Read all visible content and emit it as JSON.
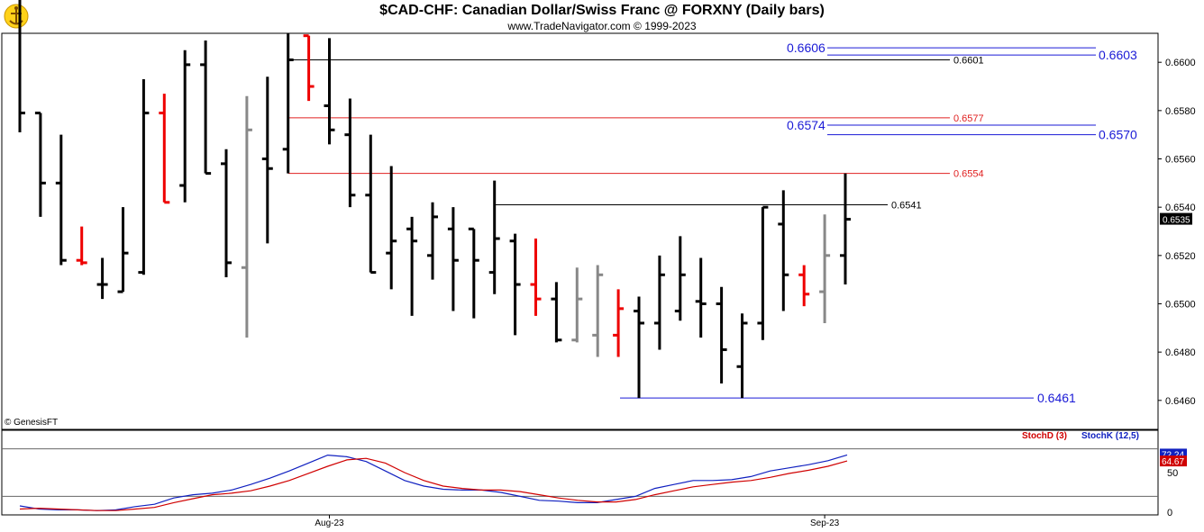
{
  "header": {
    "title": "$CAD-CHF:  Canadian Dollar/Swiss Franc @ FORXNY  (Daily bars)",
    "subtitle": "www.TradeNavigator.com © 1999-2023",
    "logo_icon": "trade-navigator-logo-icon",
    "watermark": "© GenesisFT"
  },
  "colors": {
    "up_bar": "#000000",
    "down_bar": "#ee0000",
    "neutral_bar": "#888888",
    "level_blue": "#1a1ad6",
    "level_red": "#e02020",
    "level_black": "#000000",
    "stoch_d": "#d00000",
    "stoch_k": "#1020c0"
  },
  "chart_data": [
    {
      "type": "ohlc",
      "title": "$CAD-CHF:  Canadian Dollar/Swiss Franc @ FORXNY  (Daily bars)",
      "ylim": [
        0.6448,
        0.6612
      ],
      "y_ticks": [
        "0.6600",
        "0.6580",
        "0.6560",
        "0.6540",
        "0.6520",
        "0.6500",
        "0.6480",
        "0.6460"
      ],
      "x_labels": [
        {
          "label": "Aug-23",
          "bar": 15
        },
        {
          "label": "Sep-23",
          "bar": 39
        }
      ],
      "last_price": "0.6535",
      "bars": [
        {
          "o": 0.664,
          "h": 0.665,
          "l": 0.6571,
          "c": 0.6579,
          "t": "u"
        },
        {
          "o": 0.6579,
          "h": 0.6579,
          "l": 0.6536,
          "c": 0.655,
          "t": "u"
        },
        {
          "o": 0.655,
          "h": 0.657,
          "l": 0.6516,
          "c": 0.6518,
          "t": "u"
        },
        {
          "o": 0.6518,
          "h": 0.6532,
          "l": 0.6516,
          "c": 0.6517,
          "t": "d"
        },
        {
          "o": 0.6508,
          "h": 0.6519,
          "l": 0.6502,
          "c": 0.6508,
          "t": "u"
        },
        {
          "o": 0.6505,
          "h": 0.654,
          "l": 0.6505,
          "c": 0.6521,
          "t": "u"
        },
        {
          "o": 0.6513,
          "h": 0.6593,
          "l": 0.6512,
          "c": 0.6579,
          "t": "u"
        },
        {
          "o": 0.6579,
          "h": 0.6587,
          "l": 0.6542,
          "c": 0.6542,
          "t": "d"
        },
        {
          "o": 0.6549,
          "h": 0.6605,
          "l": 0.6542,
          "c": 0.6599,
          "t": "u"
        },
        {
          "o": 0.6599,
          "h": 0.6609,
          "l": 0.6554,
          "c": 0.6554,
          "t": "u"
        },
        {
          "o": 0.6558,
          "h": 0.6564,
          "l": 0.6511,
          "c": 0.6517,
          "t": "u"
        },
        {
          "o": 0.6515,
          "h": 0.6586,
          "l": 0.6486,
          "c": 0.6572,
          "t": "n"
        },
        {
          "o": 0.656,
          "h": 0.6594,
          "l": 0.6525,
          "c": 0.6556,
          "t": "u"
        },
        {
          "o": 0.6564,
          "h": 0.6612,
          "l": 0.6554,
          "c": 0.6601,
          "t": "u"
        },
        {
          "o": 0.6611,
          "h": 0.6611,
          "l": 0.6584,
          "c": 0.659,
          "t": "d"
        },
        {
          "o": 0.6582,
          "h": 0.661,
          "l": 0.6566,
          "c": 0.6572,
          "t": "u"
        },
        {
          "o": 0.657,
          "h": 0.6585,
          "l": 0.654,
          "c": 0.6545,
          "t": "u"
        },
        {
          "o": 0.6545,
          "h": 0.657,
          "l": 0.6513,
          "c": 0.6513,
          "t": "u"
        },
        {
          "o": 0.6521,
          "h": 0.6557,
          "l": 0.6506,
          "c": 0.6526,
          "t": "u"
        },
        {
          "o": 0.6531,
          "h": 0.6536,
          "l": 0.6495,
          "c": 0.6526,
          "t": "u"
        },
        {
          "o": 0.652,
          "h": 0.6542,
          "l": 0.651,
          "c": 0.6536,
          "t": "u"
        },
        {
          "o": 0.6531,
          "h": 0.654,
          "l": 0.6497,
          "c": 0.6518,
          "t": "u"
        },
        {
          "o": 0.6531,
          "h": 0.6531,
          "l": 0.6494,
          "c": 0.6518,
          "t": "u"
        },
        {
          "o": 0.6513,
          "h": 0.6551,
          "l": 0.6504,
          "c": 0.6527,
          "t": "u"
        },
        {
          "o": 0.6526,
          "h": 0.6529,
          "l": 0.6487,
          "c": 0.6508,
          "t": "u"
        },
        {
          "o": 0.6508,
          "h": 0.6527,
          "l": 0.6495,
          "c": 0.6502,
          "t": "d"
        },
        {
          "o": 0.6502,
          "h": 0.6509,
          "l": 0.6484,
          "c": 0.6485,
          "t": "u"
        },
        {
          "o": 0.6485,
          "h": 0.6515,
          "l": 0.6484,
          "c": 0.6502,
          "t": "n"
        },
        {
          "o": 0.6487,
          "h": 0.6516,
          "l": 0.6478,
          "c": 0.6512,
          "t": "n"
        },
        {
          "o": 0.6487,
          "h": 0.6506,
          "l": 0.6478,
          "c": 0.6498,
          "t": "d"
        },
        {
          "o": 0.6497,
          "h": 0.6503,
          "l": 0.6461,
          "c": 0.6492,
          "t": "u"
        },
        {
          "o": 0.6492,
          "h": 0.652,
          "l": 0.6481,
          "c": 0.6512,
          "t": "u"
        },
        {
          "o": 0.6497,
          "h": 0.6528,
          "l": 0.6493,
          "c": 0.6512,
          "t": "u"
        },
        {
          "o": 0.6501,
          "h": 0.6519,
          "l": 0.6486,
          "c": 0.65,
          "t": "u"
        },
        {
          "o": 0.65,
          "h": 0.6507,
          "l": 0.6467,
          "c": 0.6481,
          "t": "u"
        },
        {
          "o": 0.6474,
          "h": 0.6496,
          "l": 0.6461,
          "c": 0.6492,
          "t": "u"
        },
        {
          "o": 0.6492,
          "h": 0.654,
          "l": 0.6485,
          "c": 0.654,
          "t": "u"
        },
        {
          "o": 0.6533,
          "h": 0.6547,
          "l": 0.6497,
          "c": 0.6512,
          "t": "u"
        },
        {
          "o": 0.6512,
          "h": 0.6516,
          "l": 0.6499,
          "c": 0.6504,
          "t": "d"
        },
        {
          "o": 0.6505,
          "h": 0.6537,
          "l": 0.6492,
          "c": 0.652,
          "t": "n"
        },
        {
          "o": 0.652,
          "h": 0.6554,
          "l": 0.6508,
          "c": 0.6535,
          "t": "u"
        }
      ],
      "levels": [
        {
          "label": "0.6606",
          "value": 0.6606,
          "color": "blue",
          "from_bar": 0,
          "to_bar": 50,
          "label_side": "left"
        },
        {
          "label": "0.6603",
          "value": 0.6603,
          "color": "blue",
          "from_bar": 0,
          "to_bar": 50,
          "label_side": "right"
        },
        {
          "label": "0.6601",
          "value": 0.6601,
          "color": "black",
          "from_bar": 13,
          "to_bar": 44,
          "label_side": "end"
        },
        {
          "label": "0.6577",
          "value": 0.6577,
          "color": "red",
          "from_bar": 13,
          "to_bar": 44,
          "label_side": "end"
        },
        {
          "label": "0.6574",
          "value": 0.6574,
          "color": "blue",
          "from_bar": 0,
          "to_bar": 50,
          "label_side": "left"
        },
        {
          "label": "0.6570",
          "value": 0.657,
          "color": "blue",
          "from_bar": 0,
          "to_bar": 50,
          "label_side": "right"
        },
        {
          "label": "0.6554",
          "value": 0.6554,
          "color": "red",
          "from_bar": 13,
          "to_bar": 44,
          "label_side": "end"
        },
        {
          "label": "0.6541",
          "value": 0.6541,
          "color": "black",
          "from_bar": 23,
          "to_bar": 40,
          "label_side": "end"
        },
        {
          "label": "0.6461",
          "value": 0.6461,
          "color": "blue",
          "from_bar": 29,
          "to_bar": 47,
          "label_side": "end"
        }
      ]
    },
    {
      "type": "line",
      "ylim": [
        0,
        100
      ],
      "y_ticks": [
        "50",
        "0"
      ],
      "reference_lines": [
        80,
        20
      ],
      "legend": [
        "StochD (3)",
        "StochK (12,5)"
      ],
      "series": [
        {
          "name": "StochK (12,5)",
          "values": [
            8,
            4,
            3,
            3,
            2,
            3,
            7,
            10,
            18,
            22,
            24,
            28,
            35,
            43,
            52,
            62,
            72,
            70,
            64,
            52,
            40,
            33,
            29,
            28,
            28,
            25,
            20,
            15,
            14,
            12,
            12,
            16,
            20,
            30,
            35,
            40,
            40,
            41,
            45,
            52,
            56,
            60,
            65,
            72.24
          ]
        },
        {
          "name": "StochD (3)",
          "values": [
            4,
            5,
            4,
            3,
            2,
            2,
            4,
            6,
            12,
            17,
            22,
            24,
            27,
            33,
            40,
            49,
            58,
            66,
            68,
            62,
            50,
            40,
            33,
            30,
            28,
            28,
            26,
            22,
            18,
            15,
            13,
            13,
            16,
            22,
            27,
            32,
            35,
            38,
            40,
            44,
            49,
            53,
            58,
            64.67
          ]
        }
      ],
      "last_values": {
        "k": "72.24",
        "d": "64.67"
      }
    }
  ]
}
